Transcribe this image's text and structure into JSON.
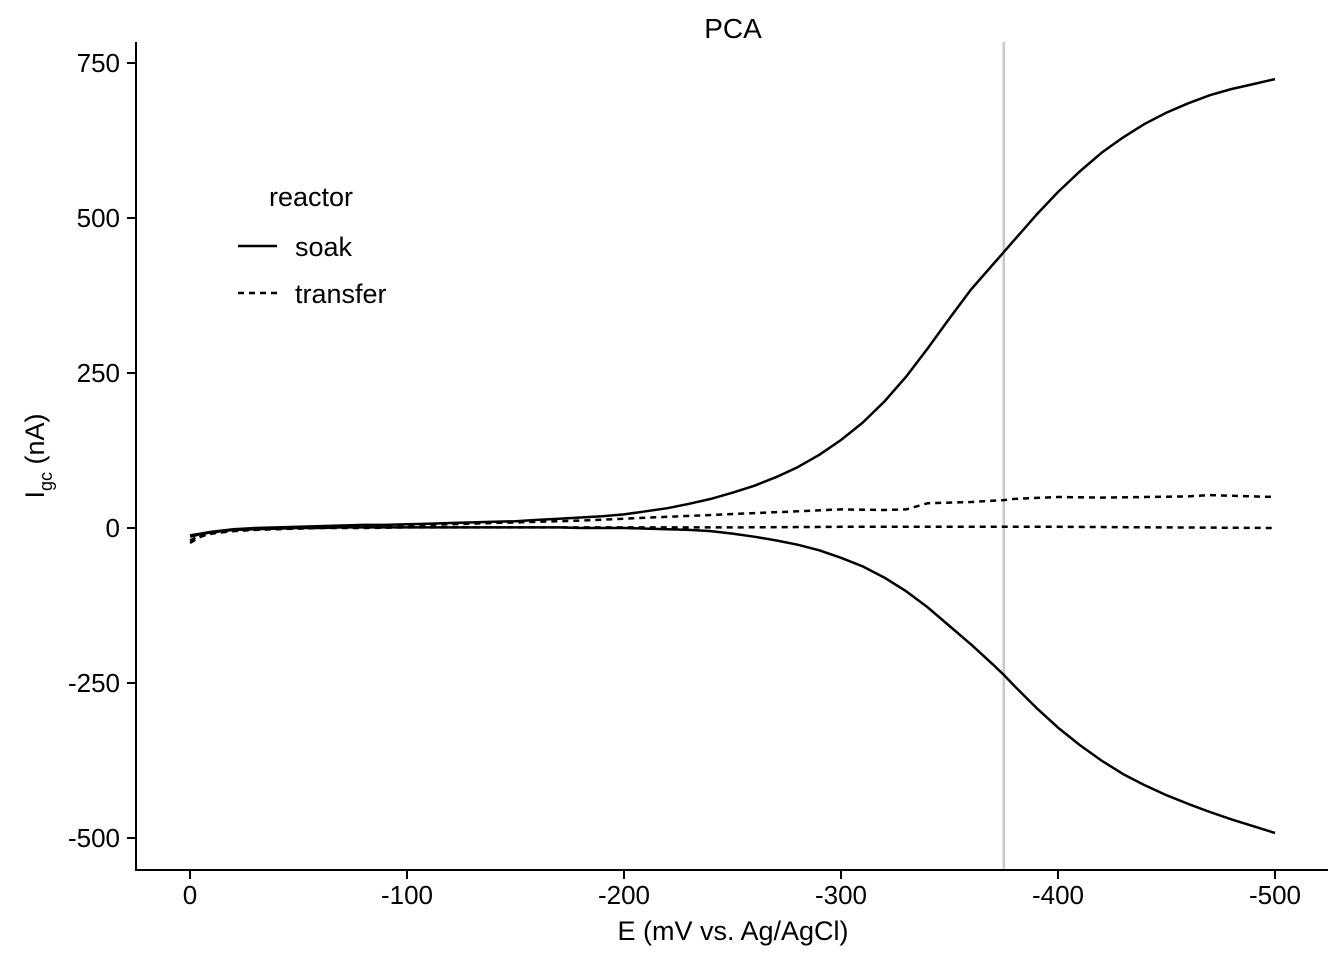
{
  "chart_data": {
    "type": "line",
    "title": "PCA",
    "xlabel": "E (mV vs. Ag/AgCl)",
    "ylabel_main": "I",
    "ylabel_sub": "gc",
    "ylabel_unit": " (nA)",
    "xlim": [
      0,
      -500
    ],
    "ylim": [
      -550,
      785
    ],
    "x_ticks": [
      0,
      -100,
      -200,
      -300,
      -400,
      -500
    ],
    "y_ticks": [
      -500,
      -250,
      0,
      250,
      500,
      750
    ],
    "x_tick_labels": [
      "0",
      "-100",
      "-200",
      "-300",
      "-400",
      "-500"
    ],
    "y_tick_labels": [
      "-500",
      "-250",
      "0",
      "250",
      "500",
      "750"
    ],
    "vline": {
      "x": -375,
      "color": "#c8c8c8"
    },
    "grid": false,
    "legend": {
      "title": "reactor",
      "position": "top-left",
      "entries": [
        {
          "label": "soak",
          "dash": "solid"
        },
        {
          "label": "transfer",
          "dash": "dashed"
        }
      ]
    },
    "series": [
      {
        "legend": "soak",
        "dash": "solid",
        "x": [
          0,
          -5,
          -10,
          -15,
          -20,
          -30,
          -40,
          -50,
          -60,
          -70,
          -80,
          -90,
          -100,
          -110,
          -120,
          -130,
          -140,
          -150,
          -160,
          -170,
          -180,
          -190,
          -200,
          -210,
          -220,
          -230,
          -240,
          -250,
          -260,
          -270,
          -280,
          -290,
          -300,
          -310,
          -320,
          -330,
          -340,
          -350,
          -360,
          -370,
          -375,
          -380,
          -390,
          -400,
          -410,
          -420,
          -430,
          -440,
          -450,
          -460,
          -470,
          -480,
          -490,
          -500
        ],
        "y": [
          -12,
          -9,
          -6,
          -4,
          -2,
          0,
          1,
          2,
          3,
          4,
          5,
          5,
          6,
          7,
          8,
          9,
          10,
          11,
          13,
          15,
          17,
          19,
          22,
          27,
          32,
          39,
          47,
          57,
          68,
          82,
          98,
          118,
          142,
          170,
          204,
          244,
          290,
          338,
          385,
          425,
          445,
          465,
          505,
          542,
          575,
          605,
          630,
          652,
          670,
          685,
          698,
          708,
          716,
          724
        ]
      },
      {
        "legend": "soak",
        "dash": "solid",
        "x": [
          0,
          -5,
          -10,
          -15,
          -20,
          -30,
          -40,
          -50,
          -60,
          -70,
          -80,
          -90,
          -100,
          -110,
          -120,
          -130,
          -140,
          -150,
          -160,
          -170,
          -180,
          -190,
          -200,
          -210,
          -220,
          -230,
          -240,
          -250,
          -260,
          -270,
          -280,
          -290,
          -300,
          -310,
          -320,
          -330,
          -340,
          -350,
          -360,
          -370,
          -375,
          -380,
          -390,
          -400,
          -410,
          -420,
          -430,
          -440,
          -450,
          -460,
          -470,
          -480,
          -490,
          -500
        ],
        "y": [
          -14,
          -10,
          -7,
          -5,
          -3,
          -2,
          -1,
          0,
          0,
          1,
          1,
          1,
          1,
          1,
          1,
          1,
          1,
          1,
          1,
          1,
          0,
          0,
          0,
          -1,
          -2,
          -3,
          -5,
          -9,
          -14,
          -20,
          -27,
          -36,
          -48,
          -62,
          -80,
          -102,
          -128,
          -158,
          -188,
          -220,
          -237,
          -255,
          -290,
          -322,
          -350,
          -375,
          -397,
          -415,
          -431,
          -445,
          -458,
          -470,
          -481,
          -492
        ]
      },
      {
        "legend": "transfer",
        "dash": "dashed",
        "x": [
          0,
          -5,
          -10,
          -20,
          -30,
          -40,
          -50,
          -60,
          -70,
          -80,
          -90,
          -100,
          -120,
          -140,
          -160,
          -180,
          -200,
          -220,
          -240,
          -260,
          -280,
          -300,
          -320,
          -330,
          -340,
          -360,
          -375,
          -380,
          -400,
          -420,
          -440,
          -460,
          -470,
          -480,
          -500
        ],
        "y": [
          -20,
          -12,
          -8,
          -4,
          -2,
          0,
          0,
          1,
          1,
          2,
          3,
          4,
          6,
          8,
          10,
          12,
          15,
          18,
          21,
          24,
          27,
          30,
          29,
          30,
          40,
          42,
          45,
          47,
          50,
          49,
          50,
          51,
          53,
          52,
          50
        ]
      },
      {
        "legend": "transfer",
        "dash": "dashed",
        "x": [
          0,
          -5,
          -10,
          -20,
          -30,
          -40,
          -50,
          -60,
          -80,
          -100,
          -150,
          -200,
          -250,
          -300,
          -350,
          -400,
          -450,
          -500
        ],
        "y": [
          -24,
          -14,
          -9,
          -5,
          -3,
          -2,
          -1,
          0,
          0,
          1,
          1,
          1,
          1,
          2,
          2,
          2,
          1,
          0
        ]
      }
    ]
  }
}
